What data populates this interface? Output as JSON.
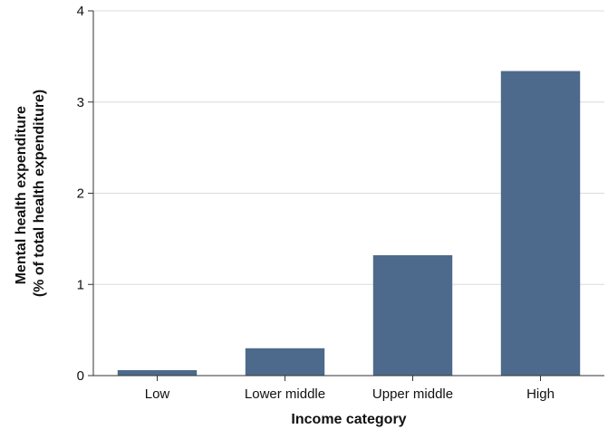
{
  "chart_data": {
    "type": "bar",
    "title": "",
    "categories": [
      "Low",
      "Lower middle",
      "Upper middle",
      "High"
    ],
    "values": [
      0.06,
      0.3,
      1.32,
      3.34
    ],
    "xlabel": "Income category",
    "ylabel_lines": [
      "Mental health expenditure",
      "(% of total health expenditure)"
    ],
    "ylim": [
      0,
      4
    ],
    "yticks": [
      "0",
      "1",
      "2",
      "3",
      "4"
    ],
    "grid": true,
    "legend": "none",
    "colors": {
      "bar": "#4d6a8c",
      "grid": "#dcdcdc",
      "axis": "#333333"
    }
  }
}
